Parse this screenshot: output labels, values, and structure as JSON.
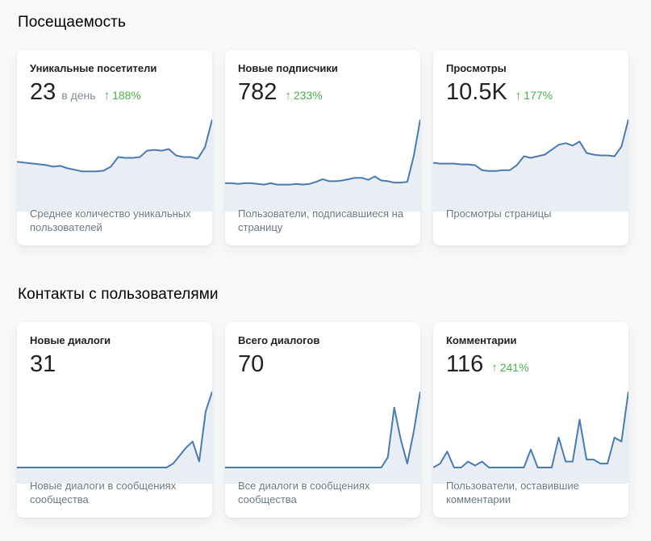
{
  "colors": {
    "line": "#4a7bb0",
    "area": "#e9eef5",
    "trend_up": "#4bb34b"
  },
  "sections": [
    {
      "title": "Посещаемость",
      "cards": [
        {
          "title": "Уникальные посетители",
          "value": "23",
          "unit": "в день",
          "trend_icon": "arrow-up-icon",
          "trend_arrow": "↑",
          "trend": "188%",
          "description": "Среднее количество уникальных пользователей",
          "series": [
            42,
            41,
            40,
            39,
            38,
            36,
            37,
            34,
            32,
            30,
            30,
            30,
            31,
            36,
            48,
            47,
            47,
            48,
            56,
            57,
            56,
            58,
            50,
            48,
            48,
            46,
            60,
            95
          ]
        },
        {
          "title": "Новые подписчики",
          "value": "782",
          "unit": "",
          "trend_icon": "arrow-up-icon",
          "trend_arrow": "↑",
          "trend": "233%",
          "description": "Пользователи, подписавшиеся на страницу",
          "series": [
            18,
            18,
            17,
            18,
            18,
            17,
            16,
            18,
            16,
            16,
            16,
            17,
            16,
            17,
            20,
            24,
            21,
            21,
            22,
            24,
            26,
            26,
            23,
            28,
            22,
            21,
            19,
            19,
            20,
            58,
            112
          ]
        },
        {
          "title": "Просмотры",
          "value": "10.5K",
          "unit": "",
          "trend_icon": "arrow-up-icon",
          "trend_arrow": "↑",
          "trend": "177%",
          "description": "Просмотры страницы",
          "series": [
            40,
            39,
            39,
            39,
            38,
            38,
            37,
            31,
            30,
            30,
            31,
            31,
            37,
            48,
            46,
            48,
            50,
            56,
            62,
            64,
            61,
            66,
            52,
            50,
            49,
            49,
            48,
            60,
            93
          ]
        }
      ]
    },
    {
      "title": "Контакты с пользователями",
      "cards": [
        {
          "title": "Новые диалоги",
          "value": "31",
          "unit": "",
          "trend_icon": "",
          "trend_arrow": "",
          "trend": "",
          "description": "Новые диалоги в сообщениях сообщества",
          "series": [
            0,
            0,
            0,
            0,
            0,
            0,
            0,
            0,
            0,
            0,
            0,
            0,
            0,
            0,
            0,
            0,
            0,
            0,
            0,
            0,
            0,
            0,
            0,
            0,
            2,
            6,
            10,
            13,
            3,
            28,
            38
          ]
        },
        {
          "title": "Всего диалогов",
          "value": "70",
          "unit": "",
          "trend_icon": "",
          "trend_arrow": "",
          "trend": "",
          "description": "Все диалоги в сообщениях сообщества",
          "series": [
            0,
            0,
            0,
            0,
            0,
            0,
            0,
            0,
            0,
            0,
            0,
            0,
            0,
            0,
            0,
            0,
            0,
            0,
            0,
            0,
            0,
            0,
            0,
            0,
            0,
            5,
            30,
            14,
            2,
            18,
            38
          ]
        },
        {
          "title": "Комментарии",
          "value": "116",
          "unit": "",
          "trend_icon": "arrow-up-icon",
          "trend_arrow": "↑",
          "trend": "241%",
          "description": "Пользователи, оставившие комментарии",
          "series": [
            0,
            2,
            8,
            0,
            0,
            3,
            1,
            3,
            0,
            0,
            0,
            0,
            0,
            0,
            9,
            0,
            0,
            0,
            15,
            3,
            3,
            24,
            4,
            4,
            2,
            2,
            15,
            13,
            38
          ]
        }
      ]
    }
  ]
}
